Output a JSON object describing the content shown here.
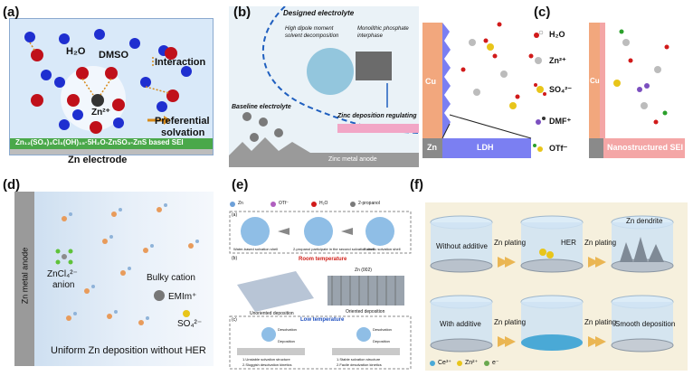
{
  "panel_a": {
    "tag": "(a)",
    "h2o": "H₂O",
    "dmso": "DMSO",
    "zn": "Zn²⁺",
    "interaction": "Interaction",
    "preferential": "Preferential",
    "solvation": "solvation",
    "sei": "Zn₁₂(SO₄)₃Cl₃(OH)₁₅·5H₂O-ZnSO₃-ZnS based SEI",
    "electrode": "Zn electrode"
  },
  "panel_b": {
    "tag": "(b)",
    "designed": "Designed electrolyte",
    "dipole1": "High dipole moment",
    "dipole2": "solvent decomposition",
    "mono1": "Monolithic phosphate",
    "mono2": "interphase",
    "baseline": "Baseline electrolyte",
    "deposition": "Zinc deposition regulating",
    "anode": "Zinc metal anode"
  },
  "panel_c": {
    "tag": "(c)",
    "cu_left": "Cu",
    "cu_right": "Cu",
    "h2o": "H₂O",
    "zn": "Zn²⁺",
    "so4": "SO₄²⁻",
    "dmf": "DMF⁺",
    "otf": "OTf⁻",
    "zn_base": "Zn",
    "ldh": "LDH",
    "nano_sei": "Nanostructured SEI"
  },
  "panel_d": {
    "tag": "(d)",
    "anode": "Zn metal anode",
    "zncl": "ZnCl₄²⁻",
    "anion": "anion",
    "bulky1": "Bulky cation",
    "bulky2": "EMIm⁺",
    "so4": "SO₄²⁻",
    "uniform": "Uniform Zn deposition without HER"
  },
  "panel_e": {
    "tag": "(e)",
    "legend": [
      "Zn",
      "OTf⁻",
      "H₂O",
      "2-propanol"
    ],
    "shell1": "Water-based solvation shell",
    "shell2": "2-propanol participate in the second solvation shell",
    "shell3": "Eutectic solvation shell",
    "room_temp": "Room temperature",
    "unoriented": "Unoriented deposition",
    "oriented": "Oriented deposition",
    "zn002": "Zn (002)",
    "low_temp": "Low temperature",
    "desolvation_l": "Desolvation",
    "deposition_l": "Deposition",
    "desolvation_r": "Desolvation",
    "deposition_r": "Deposition",
    "unstable1": "1.Unstable solvation structure",
    "unstable2": "2.Sluggish desolvation kinetics",
    "stable1": "1.Stable solvation structure",
    "stable2": "2.Facile desolvation kinetics",
    "sub_a": "(a)",
    "sub_b": "(b)",
    "sub_c": "(c)"
  },
  "panel_f": {
    "tag": "(f)",
    "without": "Without additive",
    "with": "With additive",
    "plating1": "Zn plating",
    "plating2": "Zn plating",
    "plating3": "Zn plating",
    "plating4": "Zn plating",
    "her": "HER",
    "dendrite": "Zn dendrite",
    "smooth": "Smooth deposition",
    "legend": [
      "Ce³⁺",
      "Zn²⁺",
      "e⁻"
    ]
  },
  "colors": {
    "a_bg": "#d9e9f9",
    "a_sei": "#4aa84a",
    "a_electrode": "#bdbdbd",
    "c_cu": "#f2a77d",
    "c_ldh": "#7b7ff2",
    "c_sei": "#f4a6a6",
    "f_bg": "#f6f0dd",
    "arrow": "#e8ad3c"
  }
}
